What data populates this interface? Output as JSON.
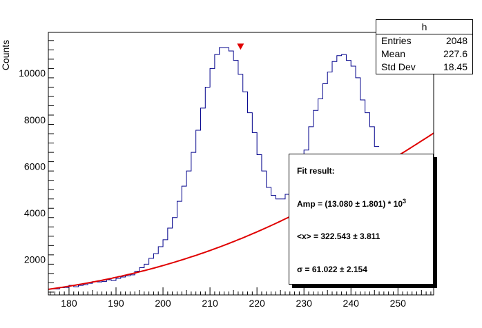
{
  "ylabel": "Counts",
  "stats": {
    "title": "h",
    "rows": [
      {
        "label": "Entries",
        "value": "2048"
      },
      {
        "label": "Mean",
        "value": "227.6"
      },
      {
        "label": "Std Dev",
        "value": "18.45"
      }
    ]
  },
  "fit": {
    "header": "Fit result:",
    "amp": "Amp = (13.080 ± 1.801) * 10",
    "amp_exp": "3",
    "mean": "<x> = 322.543 ± 3.811",
    "sigma": "σ = 61.022 ± 2.154"
  },
  "colors": {
    "histogram": "#00008b",
    "fit": "#e00000",
    "marker": "#e00000"
  },
  "chart_data": {
    "type": "histogram",
    "title": "",
    "xlabel": "",
    "ylabel": "Counts",
    "xlim": [
      175.6,
      257.6
    ],
    "ylim": [
      480,
      11750
    ],
    "x_ticks": [
      180,
      190,
      200,
      210,
      220,
      230,
      240,
      250
    ],
    "y_ticks": [
      2000,
      4000,
      6000,
      8000,
      10000
    ],
    "histogram": {
      "bin_width": 1,
      "bin_start": 176,
      "counts": [
        740,
        740,
        790,
        800,
        890,
        830,
        890,
        920,
        980,
        1050,
        1040,
        1060,
        1130,
        1100,
        1190,
        1250,
        1300,
        1340,
        1500,
        1650,
        1800,
        2050,
        2250,
        2550,
        2850,
        3350,
        3800,
        4500,
        5150,
        5800,
        6600,
        7550,
        8500,
        9400,
        10200,
        10800,
        11100,
        11100,
        10950,
        10550,
        9950,
        9200,
        8300,
        7450,
        6500,
        5800,
        5100,
        4750,
        4600,
        4600,
        4800,
        4950,
        5300,
        5950,
        6700,
        7700,
        8400,
        8900,
        9550,
        10050,
        10500,
        10750,
        10800,
        10550,
        10300,
        9800,
        8850,
        8300,
        7700,
        6850
      ]
    },
    "fit": {
      "function": "Amp * exp(-0.5*((x-<x>)/sigma)^2)",
      "amp": 13080,
      "mean": 322.543,
      "sigma": 61.022
    },
    "peak_marker": {
      "x": 216.5,
      "y": 11150
    },
    "grid": false,
    "legend": "top-right"
  }
}
